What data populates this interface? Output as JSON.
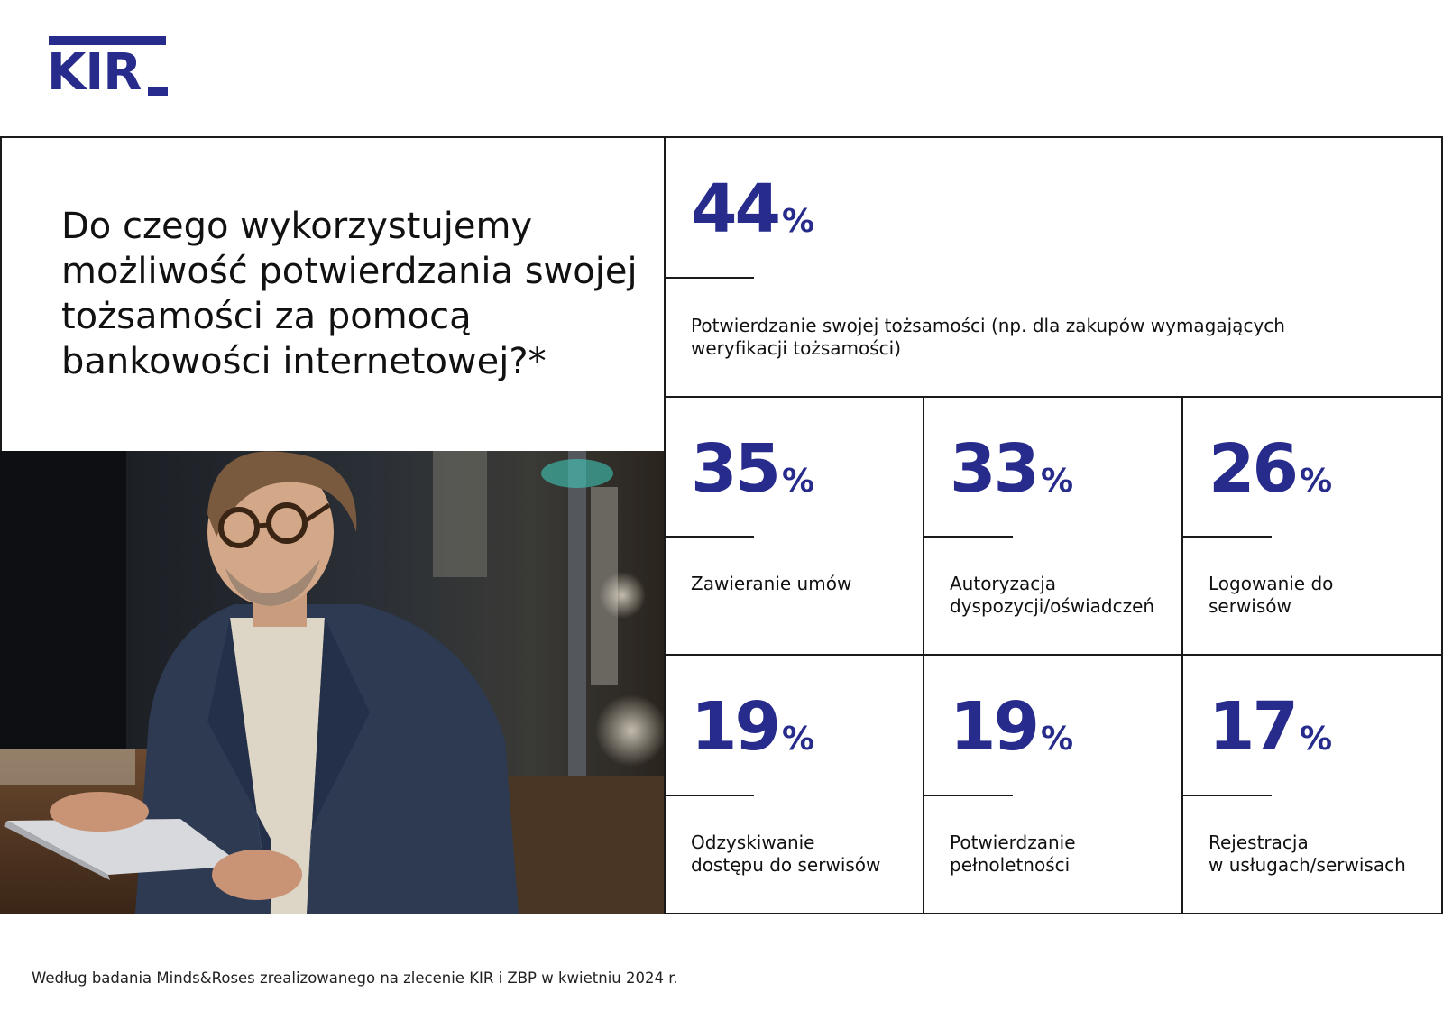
{
  "logo": {
    "text": "KIR"
  },
  "question": "Do czego wykorzystujemy możliwość potwierdzania swojej tożsamości za pomocą bankowości internetowej?*",
  "colors": {
    "accent": "#262b8c",
    "text": "#111111",
    "line": "#1a1a1a"
  },
  "chart_data": {
    "type": "table",
    "categories": [
      "Potwierdzanie swojej tożsamości (np. dla zakupów wymagających weryfikacji tożsamości)",
      "Zawieranie umów",
      "Autoryzacja dyspozycji/oświadczeń",
      "Logowanie do serwisów",
      "Odzyskiwanie dostępu do serwisów",
      "Potwierdzanie pełnoletności",
      "Rejestracja w usługach/serwisach"
    ],
    "values": [
      44,
      35,
      33,
      26,
      19,
      19,
      17
    ],
    "unit": "%"
  },
  "stats": [
    {
      "value": "44",
      "unit": "%",
      "label_lines": [
        "Potwierdzanie swojej tożsamości (np. dla zakupów wymagających",
        "weryfikacji tożsamości)"
      ]
    },
    {
      "value": "35",
      "unit": "%",
      "label_lines": [
        "Zawieranie umów"
      ]
    },
    {
      "value": "33",
      "unit": "%",
      "label_lines": [
        "Autoryzacja",
        "dyspozycji/oświadczeń"
      ]
    },
    {
      "value": "26",
      "unit": "%",
      "label_lines": [
        "Logowanie do",
        "serwisów"
      ]
    },
    {
      "value": "19",
      "unit": "%",
      "label_lines": [
        "Odzyskiwanie",
        "dostępu do serwisów"
      ]
    },
    {
      "value": "19",
      "unit": "%",
      "label_lines": [
        "Potwierdzanie",
        "pełnoletności"
      ]
    },
    {
      "value": "17",
      "unit": "%",
      "label_lines": [
        "Rejestracja",
        "w usługach/serwisach"
      ]
    }
  ],
  "footnote": "Według badania Minds&Roses zrealizowanego na zlecenie KIR i ZBP w kwietniu 2024 r."
}
